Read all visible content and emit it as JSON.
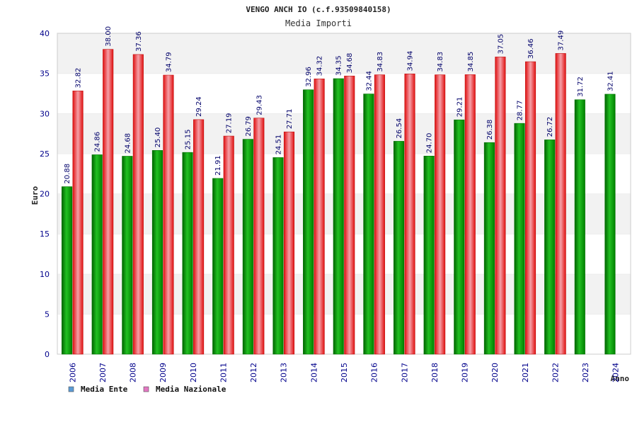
{
  "chart_data": {
    "type": "bar",
    "title": "VENGO ANCH IO (c.f.93509840158)",
    "subtitle": "Media Importi",
    "xlabel": "Anno",
    "ylabel": "Euro",
    "ylim": [
      0,
      40
    ],
    "yticks": [
      0,
      5,
      10,
      15,
      20,
      25,
      30,
      35,
      40
    ],
    "categories": [
      "2006",
      "2007",
      "2008",
      "2009",
      "2010",
      "2011",
      "2012",
      "2013",
      "2014",
      "2015",
      "2016",
      "2017",
      "2018",
      "2019",
      "2020",
      "2021",
      "2022",
      "2023",
      "2024"
    ],
    "series": [
      {
        "name": "Media Ente",
        "legend_color": "#5b9bd5",
        "bar_color": "#00a000",
        "values": [
          20.88,
          24.86,
          24.68,
          25.4,
          25.15,
          21.91,
          26.79,
          24.51,
          32.96,
          34.35,
          32.44,
          26.54,
          24.7,
          29.21,
          26.38,
          28.77,
          26.72,
          31.72,
          32.41
        ],
        "labels": [
          "20.88",
          "24.86",
          "24.68",
          "25.40",
          "25.15",
          "21.91",
          "26.79",
          "24.51",
          "32.96",
          "34.35",
          "32.44",
          "26.54",
          "24.70",
          "29.21",
          "26.38",
          "28.77",
          "26.72",
          "31.72",
          "32.41"
        ]
      },
      {
        "name": "Media Nazionale",
        "legend_color": "#e377c2",
        "bar_color": "#e8202a",
        "values": [
          32.82,
          38.0,
          37.36,
          34.79,
          29.24,
          27.19,
          29.43,
          27.71,
          34.32,
          34.68,
          34.83,
          34.94,
          34.83,
          34.85,
          37.05,
          36.46,
          37.49,
          null,
          null
        ],
        "labels": [
          "32.82",
          "38.00",
          "37.36",
          "34.79",
          "29.24",
          "27.19",
          "29.43",
          "27.71",
          "34.32",
          "34.68",
          "34.83",
          "34.94",
          "34.83",
          "34.85",
          "37.05",
          "36.46",
          "37.49",
          null,
          null
        ]
      }
    ],
    "grid": true,
    "legend_position": "bottom-left"
  }
}
